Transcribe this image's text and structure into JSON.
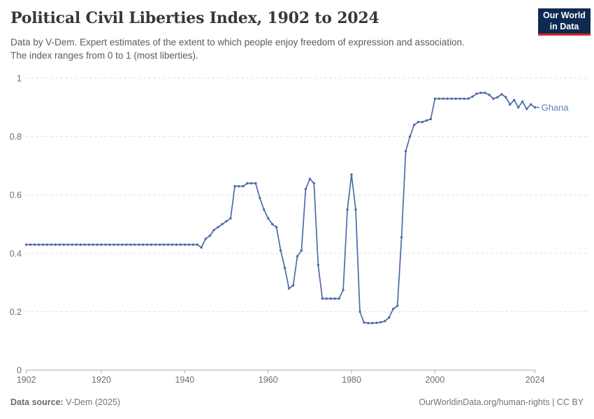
{
  "header": {
    "title": "Political Civil Liberties Index, 1902 to 2024",
    "subtitle_line1": "Data by V-Dem. Expert estimates of the extent to which people enjoy freedom of expression and association.",
    "subtitle_line2": "The index ranges from 0 to 1 (most liberties)."
  },
  "logo": {
    "line1": "Our World",
    "line2": "in Data",
    "bg_color": "#0e2a52",
    "bar_color": "#d62b25",
    "text_color": "#ffffff"
  },
  "footer": {
    "source_label": "Data source:",
    "source_value": " V-Dem (2025)",
    "right_text": "OurWorldinData.org/human-rights | CC BY"
  },
  "chart_data": {
    "type": "line",
    "title": "Political Civil Liberties Index, 1902 to 2024",
    "subtitle": "Data by V-Dem. Expert estimates of the extent to which people enjoy freedom of expression and association. The index ranges from 0 to 1 (most liberties).",
    "xlabel": "",
    "ylabel": "",
    "xlim": [
      1902,
      2024
    ],
    "ylim": [
      0,
      1
    ],
    "grid": "dashed-horizontal",
    "legend_position": "end-of-line-label",
    "x_ticks": {
      "values": [
        1902,
        1920,
        1940,
        1960,
        1980,
        2000,
        2024
      ],
      "labels": [
        "1902",
        "1920",
        "1940",
        "1960",
        "1980",
        "2000",
        "2024"
      ]
    },
    "y_ticks": {
      "values": [
        0,
        0.2,
        0.4,
        0.6,
        0.8,
        1
      ],
      "labels": [
        "0",
        "0.2",
        "0.4",
        "0.6",
        "0.8",
        "1"
      ]
    },
    "series": [
      {
        "name": "Ghana",
        "color": "#4c6ba8",
        "label_color": "#5d7fb3",
        "x": [
          1902,
          1903,
          1904,
          1905,
          1906,
          1907,
          1908,
          1909,
          1910,
          1911,
          1912,
          1913,
          1914,
          1915,
          1916,
          1917,
          1918,
          1919,
          1920,
          1921,
          1922,
          1923,
          1924,
          1925,
          1926,
          1927,
          1928,
          1929,
          1930,
          1931,
          1932,
          1933,
          1934,
          1935,
          1936,
          1937,
          1938,
          1939,
          1940,
          1941,
          1942,
          1943,
          1944,
          1945,
          1946,
          1947,
          1948,
          1949,
          1950,
          1951,
          1952,
          1953,
          1954,
          1955,
          1956,
          1957,
          1958,
          1959,
          1960,
          1961,
          1962,
          1963,
          1964,
          1965,
          1966,
          1967,
          1968,
          1969,
          1970,
          1971,
          1972,
          1973,
          1974,
          1975,
          1976,
          1977,
          1978,
          1979,
          1980,
          1981,
          1982,
          1983,
          1984,
          1985,
          1986,
          1987,
          1988,
          1989,
          1990,
          1991,
          1992,
          1993,
          1994,
          1995,
          1996,
          1997,
          1998,
          1999,
          2000,
          2001,
          2002,
          2003,
          2004,
          2005,
          2006,
          2007,
          2008,
          2009,
          2010,
          2011,
          2012,
          2013,
          2014,
          2015,
          2016,
          2017,
          2018,
          2019,
          2020,
          2021,
          2022,
          2023,
          2024
        ],
        "values": [
          0.43,
          0.43,
          0.43,
          0.43,
          0.43,
          0.43,
          0.43,
          0.43,
          0.43,
          0.43,
          0.43,
          0.43,
          0.43,
          0.43,
          0.43,
          0.43,
          0.43,
          0.43,
          0.43,
          0.43,
          0.43,
          0.43,
          0.43,
          0.43,
          0.43,
          0.43,
          0.43,
          0.43,
          0.43,
          0.43,
          0.43,
          0.43,
          0.43,
          0.43,
          0.43,
          0.43,
          0.43,
          0.43,
          0.43,
          0.43,
          0.43,
          0.43,
          0.42,
          0.45,
          0.46,
          0.48,
          0.49,
          0.5,
          0.51,
          0.52,
          0.63,
          0.63,
          0.63,
          0.64,
          0.64,
          0.64,
          0.59,
          0.55,
          0.52,
          0.5,
          0.49,
          0.41,
          0.35,
          0.28,
          0.29,
          0.39,
          0.41,
          0.62,
          0.655,
          0.64,
          0.36,
          0.245,
          0.245,
          0.245,
          0.245,
          0.245,
          0.275,
          0.55,
          0.67,
          0.55,
          0.2,
          0.163,
          0.161,
          0.161,
          0.162,
          0.164,
          0.168,
          0.18,
          0.21,
          0.22,
          0.455,
          0.75,
          0.8,
          0.84,
          0.85,
          0.85,
          0.855,
          0.86,
          0.93,
          0.93,
          0.93,
          0.93,
          0.93,
          0.93,
          0.93,
          0.93,
          0.93,
          0.937,
          0.947,
          0.95,
          0.95,
          0.943,
          0.93,
          0.935,
          0.945,
          0.935,
          0.91,
          0.925,
          0.9,
          0.92,
          0.895,
          0.91,
          0.9
        ]
      }
    ],
    "colors": {
      "gridline": "#dadada",
      "axis": "#a8a8a8",
      "tick_label": "#6e6e6e"
    }
  }
}
